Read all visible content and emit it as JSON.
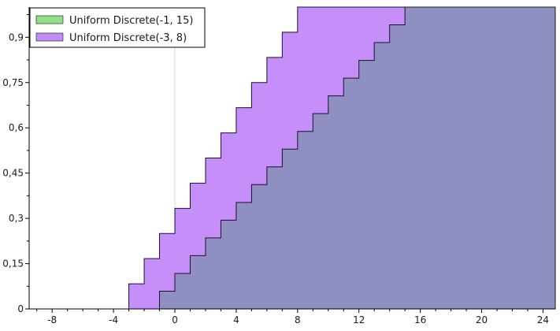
{
  "chart_data": {
    "type": "area",
    "step": true,
    "xlim": [
      -9.5,
      24.8
    ],
    "ylim": [
      0,
      1
    ],
    "xticks": [
      -8,
      -4,
      0,
      4,
      8,
      12,
      16,
      20,
      24
    ],
    "yticks": [
      0,
      0.15,
      0.3,
      0.45,
      0.6,
      0.75,
      0.9
    ],
    "ytick_labels": [
      "0",
      "0,15",
      "0,3",
      "0,45",
      "0,6",
      "0,75",
      "0,9"
    ],
    "grid": "zero-axes",
    "legend_position": "top-left",
    "series": [
      {
        "name": "Uniform Discrete(-1, 15)",
        "legend_color": "#90e088",
        "fill": "#8f8fc2",
        "x": [
          -1,
          0,
          1,
          2,
          3,
          4,
          5,
          6,
          7,
          8,
          9,
          10,
          11,
          12,
          13,
          14,
          15
        ],
        "y": [
          0.0588,
          0.1176,
          0.1765,
          0.2353,
          0.2941,
          0.3529,
          0.4118,
          0.4706,
          0.5294,
          0.5882,
          0.6471,
          0.7059,
          0.7647,
          0.8235,
          0.8824,
          0.9412,
          1.0
        ]
      },
      {
        "name": "Uniform Discrete(-3, 8)",
        "legend_color": "#c08cf8",
        "fill": "#c58ef8",
        "x": [
          -3,
          -2,
          -1,
          0,
          1,
          2,
          3,
          4,
          5,
          6,
          7,
          8
        ],
        "y": [
          0.0833,
          0.1667,
          0.25,
          0.3333,
          0.4167,
          0.5,
          0.5833,
          0.6667,
          0.75,
          0.8333,
          0.9167,
          1.0
        ]
      }
    ]
  }
}
